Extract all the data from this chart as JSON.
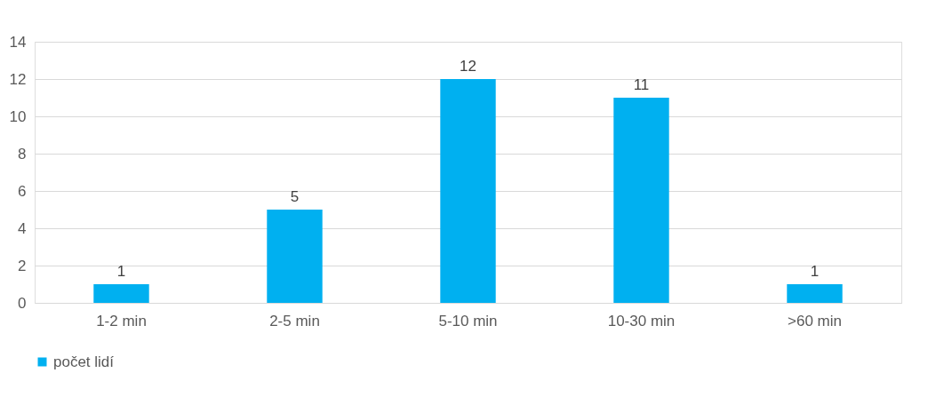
{
  "chart_data": {
    "type": "bar",
    "categories": [
      "1-2 min",
      "2-5 min",
      "5-10 min",
      "10-30 min",
      ">60 min"
    ],
    "series": [
      {
        "name": "počet lidí",
        "color": "#00b0f0",
        "values": [
          1,
          5,
          12,
          11,
          1
        ]
      }
    ],
    "ylim": [
      0,
      14
    ],
    "yticks": [
      0,
      2,
      4,
      6,
      8,
      10,
      12,
      14
    ],
    "grid": "y",
    "legend": "bottom",
    "data_labels": true
  }
}
